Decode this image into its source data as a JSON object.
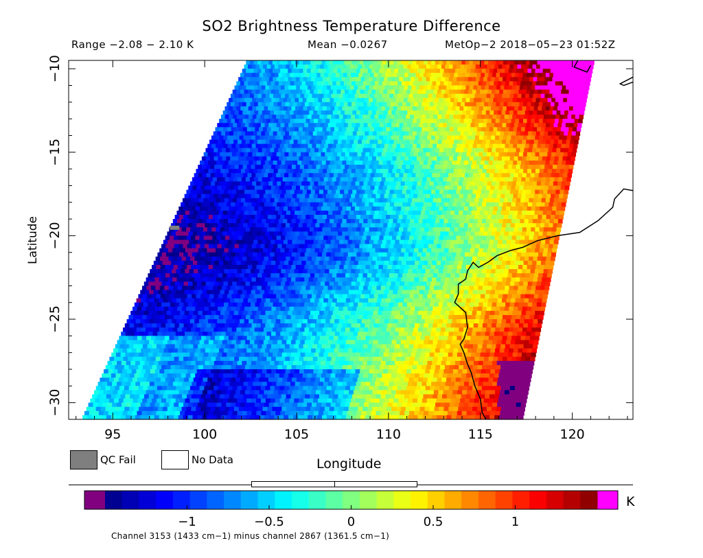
{
  "chart_data": {
    "type": "heatmap",
    "title": "SO2 Brightness Temperature Difference",
    "subtitle_range": "Range −2.08 − 2.10 K",
    "subtitle_mean": "Mean −0.0267",
    "subtitle_satellite": "MetOp−2 2018−05−23 01:52Z",
    "xlabel": "Longitude",
    "ylabel": "Latitude",
    "xlim": [
      92.6,
      123.3
    ],
    "ylim": [
      -31.0,
      -9.5
    ],
    "x_ticks": [
      95,
      100,
      105,
      110,
      115,
      120
    ],
    "x_tick_labels": [
      "95",
      "100",
      "105",
      "110",
      "115",
      "120"
    ],
    "y_ticks": [
      -10,
      -15,
      -20,
      -25,
      -30
    ],
    "y_tick_labels": [
      "−10",
      "−15",
      "−20",
      "−25",
      "−30"
    ],
    "swath_longitudes": {
      "top_left": [
        102.3,
        -9.5
      ],
      "top_right": [
        121.2,
        -9.5
      ],
      "bottom_left": [
        93.3,
        -31.0
      ],
      "bottom_right": [
        117.3,
        -31.0
      ]
    },
    "value_range": [
      -2.08,
      2.1
    ],
    "mean": -0.0267,
    "colorbar": {
      "min": -1.5,
      "max": 1.5,
      "ticks": [
        -1,
        -0.5,
        0,
        0.5,
        1
      ],
      "tick_labels": [
        "−1",
        "−0.5",
        "0",
        "0.5",
        "1"
      ],
      "unit": "K",
      "under_color": "#800080",
      "over_color": "#ff00ff"
    },
    "legend": [
      {
        "label": "QC Fail",
        "color": "#7f7f7f"
      },
      {
        "label": "No Data",
        "color": "#ffffff"
      }
    ],
    "footnote": "Channel 3153 (1433 cm−1) minus channel 2867 (1361.5 cm−1)",
    "coastline": [
      [
        123.3,
        -17.3
      ],
      [
        122.8,
        -17.2
      ],
      [
        122.3,
        -17.8
      ],
      [
        122.2,
        -18.3
      ],
      [
        121.4,
        -19.1
      ],
      [
        120.4,
        -19.8
      ],
      [
        119.2,
        -20.0
      ],
      [
        118.1,
        -20.3
      ],
      [
        117.3,
        -20.7
      ],
      [
        116.6,
        -20.9
      ],
      [
        115.9,
        -21.2
      ],
      [
        115.4,
        -21.6
      ],
      [
        114.9,
        -21.9
      ],
      [
        114.6,
        -21.6
      ],
      [
        114.3,
        -22.1
      ],
      [
        114.2,
        -22.6
      ],
      [
        113.8,
        -22.9
      ],
      [
        113.8,
        -23.5
      ],
      [
        113.6,
        -24.0
      ],
      [
        114.2,
        -24.6
      ],
      [
        114.3,
        -25.5
      ],
      [
        114.1,
        -26.2
      ],
      [
        113.9,
        -26.5
      ],
      [
        114.1,
        -27.0
      ],
      [
        114.3,
        -27.7
      ],
      [
        114.5,
        -28.2
      ],
      [
        114.7,
        -29.0
      ],
      [
        115.0,
        -29.8
      ],
      [
        115.1,
        -30.6
      ],
      [
        115.3,
        -31.0
      ]
    ],
    "coastline_topright": [
      [
        120.3,
        -9.5
      ],
      [
        120.1,
        -9.9
      ],
      [
        120.8,
        -10.2
      ],
      [
        121.0,
        -9.8
      ]
    ],
    "coastline_island": [
      [
        123.3,
        -10.8
      ],
      [
        122.8,
        -11.0
      ],
      [
        122.6,
        -10.9
      ],
      [
        123.3,
        -10.5
      ]
    ],
    "grid": false
  }
}
